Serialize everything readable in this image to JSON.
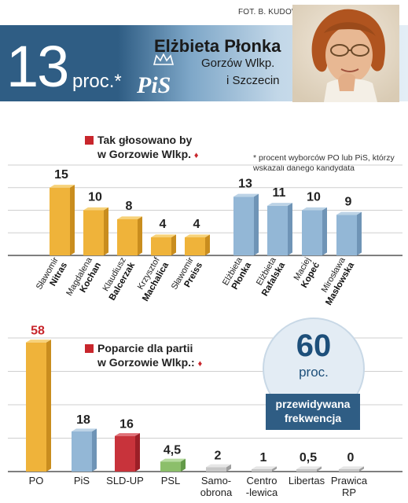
{
  "header": {
    "credit": "FOT. B. KUDOWICZ",
    "percent_number": "13",
    "percent_unit": "proc.*",
    "party_logo": "PiS",
    "candidate_name": "Elżbieta Płonka",
    "city_line1": "Gorzów Wlkp.",
    "city_line2": "i Szczecin"
  },
  "section1": {
    "title_line1": "Tak głosowano by",
    "title_line2": "w Gorzowie Wlkp.",
    "arrow": "♦",
    "note": "* procent wyborców PO lub PiS, którzy wskazali danego kandydata"
  },
  "section2": {
    "title_line1": "Poparcie dla partii",
    "title_line2": "w Gorzowie Wlkp.:",
    "arrow": "♦"
  },
  "turnout": {
    "value": "60",
    "unit": "proc.",
    "label_line1": "przewidywana",
    "label_line2": "frekwencja"
  },
  "colors": {
    "po_orange": "#efb33a",
    "pis_blue": "#93b7d6",
    "sld_red": "#c8333b",
    "psl_green": "#8cbf6b",
    "grey": "#c8c8c8",
    "banner_blue": "#2f5d84",
    "accent_red": "#c8262c"
  },
  "chart_data": [
    {
      "type": "bar",
      "title": "Tak głosowano by w Gorzowie Wlkp.",
      "series": [
        {
          "values": [
            15,
            10,
            8,
            4,
            4
          ],
          "color": "orange"
        },
        {
          "values": [
            13,
            11,
            10,
            9
          ],
          "color": "blue"
        }
      ],
      "bars": [
        {
          "first": "Sławomir",
          "last": "Nitras",
          "value": 15,
          "label": "15",
          "group": "PO"
        },
        {
          "first": "Magdalena",
          "last": "Kochan",
          "value": 10,
          "label": "10",
          "group": "PO"
        },
        {
          "first": "Klaudiusz",
          "last": "Balcerzak",
          "value": 8,
          "label": "8",
          "group": "PO"
        },
        {
          "first": "Krzysztof",
          "last": "Machalica",
          "value": 4,
          "label": "4",
          "group": "PO"
        },
        {
          "first": "Sławomir",
          "last": "Preiss",
          "value": 4,
          "label": "4",
          "group": "PO"
        },
        {
          "first": "Elżbieta",
          "last": "Płonka",
          "value": 13,
          "label": "13",
          "group": "PiS"
        },
        {
          "first": "Elżbieta",
          "last": "Rafalska",
          "value": 11,
          "label": "11",
          "group": "PiS"
        },
        {
          "first": "Maciej",
          "last": "Kopeć",
          "value": 10,
          "label": "10",
          "group": "PiS"
        },
        {
          "first": "Mirosława",
          "last": "Masłowska",
          "value": 9,
          "label": "9",
          "group": "PiS"
        }
      ],
      "ylim": [
        0,
        20
      ],
      "grid": true
    },
    {
      "type": "bar",
      "title": "Poparcie dla partii w Gorzowie Wlkp.:",
      "categories": [
        "PO",
        "PiS",
        "SLD-UP",
        "PSL",
        "Samo-obrona",
        "Centro-lewica",
        "Libertas",
        "Prawica RP"
      ],
      "values": [
        58,
        18,
        16,
        4.5,
        2,
        1,
        0.5,
        0
      ],
      "value_labels": [
        "58",
        "18",
        "16",
        "4,5",
        "2",
        "1",
        "0,5",
        "0"
      ],
      "category_lines": [
        [
          "PO"
        ],
        [
          "PiS"
        ],
        [
          "SLD-UP"
        ],
        [
          "PSL"
        ],
        [
          "Samo-",
          "obrona"
        ],
        [
          "Centro",
          "-lewica"
        ],
        [
          "Libertas"
        ],
        [
          "Prawica",
          "RP"
        ]
      ],
      "colors": [
        "orange",
        "blue",
        "red",
        "green",
        "grey",
        "grey",
        "grey",
        "grey"
      ],
      "ylim": [
        0,
        60
      ],
      "grid": true
    }
  ]
}
